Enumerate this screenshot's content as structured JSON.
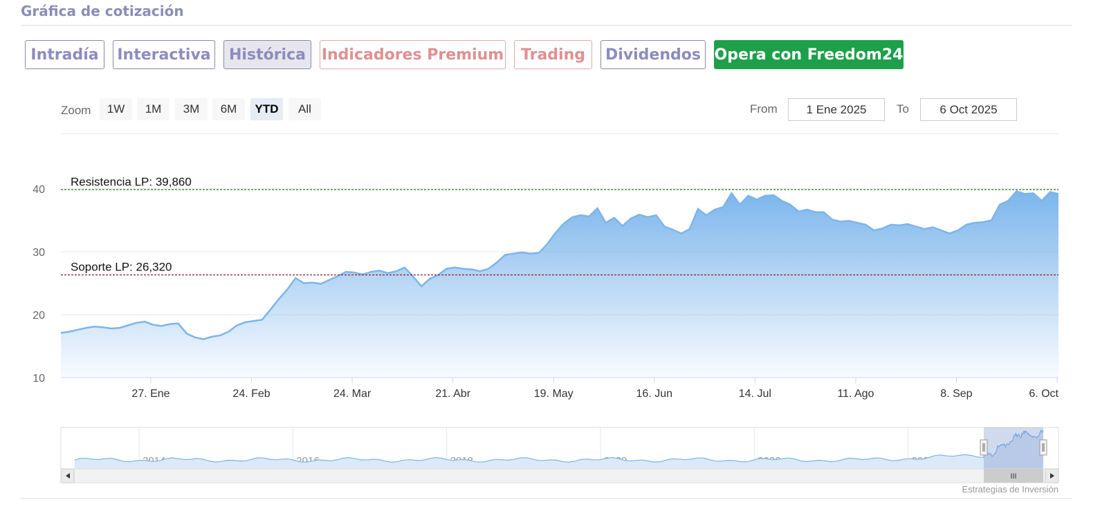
{
  "header": {
    "title": "Gráfica de cotización"
  },
  "tabs": [
    {
      "label": "Intradía",
      "state": "normal"
    },
    {
      "label": "Interactiva",
      "state": "normal"
    },
    {
      "label": "Histórica",
      "state": "active"
    },
    {
      "label": "Indicadores Premium",
      "state": "premium"
    },
    {
      "label": "Trading",
      "state": "premium"
    },
    {
      "label": "Dividendos",
      "state": "normal"
    },
    {
      "label": "Opera con Freedom24",
      "state": "cta"
    }
  ],
  "range_selector": {
    "zoom_label": "Zoom",
    "buttons": [
      "1W",
      "1M",
      "3M",
      "6M",
      "YTD",
      "All"
    ],
    "selected": "YTD",
    "from_label": "From",
    "from_value": "1 Ene 2025",
    "to_label": "To",
    "to_value": "6 Oct 2025"
  },
  "chart_data": {
    "type": "area",
    "y_ticks": [
      10,
      20,
      30,
      40
    ],
    "ylim": [
      10,
      40
    ],
    "x_ticks": [
      "27. Ene",
      "24. Feb",
      "24. Mar",
      "21. Abr",
      "19. May",
      "16. Jun",
      "14. Jul",
      "11. Ago",
      "8. Sep",
      "6. Oct"
    ],
    "grid": true,
    "annotations": [
      {
        "label": "Resistencia LP: 39,860",
        "value": 39.86,
        "color": "#2e7d32"
      },
      {
        "label": "Soporte LP: 26,320",
        "value": 26.32,
        "color": "#8b1a2b"
      }
    ],
    "series": [
      {
        "color": "#7cb5ec",
        "values": [
          17.1,
          17.3,
          17.6,
          17.9,
          18.1,
          18.0,
          17.8,
          17.9,
          18.3,
          18.7,
          18.9,
          18.4,
          18.2,
          18.5,
          18.6,
          17.0,
          16.4,
          16.1,
          16.5,
          16.7,
          17.3,
          18.3,
          18.8,
          19.0,
          19.2,
          20.8,
          22.5,
          24.0,
          25.8,
          25.0,
          25.1,
          24.9,
          25.5,
          26.1,
          26.8,
          26.7,
          26.4,
          26.8,
          27.0,
          26.6,
          26.9,
          27.5,
          26.1,
          24.5,
          25.7,
          26.3,
          27.3,
          27.5,
          27.3,
          27.2,
          26.9,
          27.3,
          28.3,
          29.5,
          29.7,
          29.9,
          29.7,
          29.8,
          31.2,
          33.0,
          34.5,
          35.5,
          35.8,
          35.6,
          36.9,
          34.6,
          35.4,
          34.1,
          35.3,
          35.9,
          35.5,
          35.8,
          34.0,
          33.5,
          32.9,
          33.6,
          36.8,
          35.8,
          36.7,
          37.1,
          39.3,
          37.5,
          38.9,
          38.3,
          38.9,
          39.0,
          38.1,
          37.5,
          36.4,
          36.7,
          36.3,
          36.3,
          35.1,
          34.8,
          34.9,
          34.6,
          34.3,
          33.4,
          33.7,
          34.3,
          34.2,
          34.4,
          34.0,
          33.6,
          33.9,
          33.4,
          32.9,
          33.4,
          34.3,
          34.6,
          34.7,
          35.0,
          37.5,
          38.1,
          39.6,
          39.2,
          39.3,
          38.1,
          39.5,
          39.2
        ]
      }
    ]
  },
  "navigator": {
    "year_labels": [
      "2014",
      "2016",
      "2018",
      "2020",
      "2022",
      "2024"
    ],
    "scroll_left_icon": "arrow-left-icon",
    "scroll_right_icon": "arrow-right-icon",
    "handle_grip": "III"
  },
  "credits": "Estrategias de Inversión"
}
